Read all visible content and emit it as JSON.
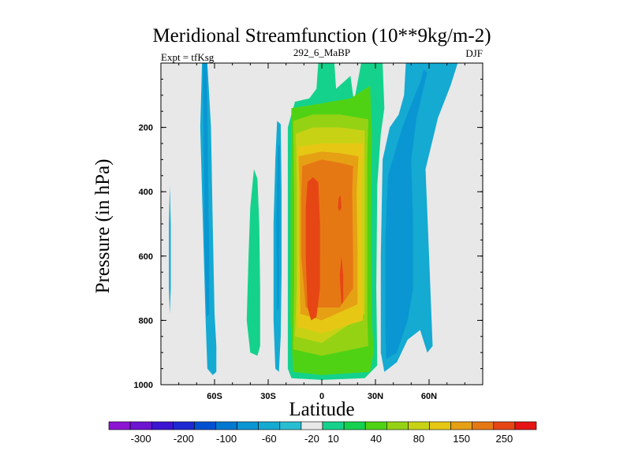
{
  "chart_data": {
    "type": "contour",
    "title": "Meridional Streamfunction (10**9kg/m-2)",
    "subtitle_left": "Expt = tfKsg",
    "subtitle_center": "292_6_MaBP",
    "subtitle_right": "DJF",
    "xlabel": "Latitude",
    "ylabel": "Pressure (in hPa)",
    "xlim": [
      -90,
      90
    ],
    "ylim": [
      0,
      1000
    ],
    "x_ticks": [
      {
        "value": -60,
        "label": "60S"
      },
      {
        "value": -30,
        "label": "30S"
      },
      {
        "value": 0,
        "label": "0"
      },
      {
        "value": 30,
        "label": "30N"
      },
      {
        "value": 60,
        "label": "60N"
      }
    ],
    "y_ticks": [
      {
        "value": 200,
        "label": "200"
      },
      {
        "value": 400,
        "label": "400"
      },
      {
        "value": 600,
        "label": "600"
      },
      {
        "value": 800,
        "label": "800"
      },
      {
        "value": 1000,
        "label": "1000"
      }
    ],
    "colorbar": {
      "colors": [
        "#8c14d2",
        "#6e14d2",
        "#3c14d2",
        "#1e28d2",
        "#0050d2",
        "#0078d2",
        "#0a96d2",
        "#14aad2",
        "#28bed2",
        "#e8e8e8",
        "#14d28c",
        "#14d250",
        "#50d214",
        "#96d214",
        "#c8d214",
        "#e6c814",
        "#e6a014",
        "#e67814",
        "#e64614",
        "#e61414"
      ],
      "labels": [
        "-300",
        "-200",
        "-100",
        "-60",
        "-20",
        "10",
        "40",
        "80",
        "150",
        "250"
      ],
      "label_slots": [
        1,
        3,
        5,
        7,
        9,
        10,
        12,
        14,
        16,
        18
      ]
    },
    "contours": [
      {
        "name": "sh-polar-negative",
        "fill": "#14aad2",
        "points": [
          [
            -85,
            380
          ],
          [
            -84.5,
            500
          ],
          [
            -84.5,
            700
          ],
          [
            -85,
            780
          ],
          [
            -85.5,
            700
          ],
          [
            -85.5,
            500
          ]
        ]
      },
      {
        "name": "sh-high-lat-negative",
        "fill": "#14aad2",
        "points": [
          [
            -67,
            0
          ],
          [
            -64,
            0
          ],
          [
            -62,
            200
          ],
          [
            -61,
            500
          ],
          [
            -60,
            780
          ],
          [
            -59,
            880
          ],
          [
            -59,
            960
          ],
          [
            -61,
            970
          ],
          [
            -64,
            950
          ],
          [
            -65,
            800
          ],
          [
            -66,
            600
          ],
          [
            -67,
            400
          ],
          [
            -68,
            200
          ]
        ]
      },
      {
        "name": "sh-high-lat-core",
        "fill": "#0a96d2",
        "points": [
          [
            -66.5,
            0
          ],
          [
            -64.5,
            0
          ],
          [
            -64,
            150
          ],
          [
            -63.5,
            400
          ],
          [
            -63,
            600
          ],
          [
            -63,
            780
          ],
          [
            -64.5,
            790
          ],
          [
            -65.5,
            600
          ],
          [
            -66,
            300
          ]
        ]
      },
      {
        "name": "sh-ferrel-positive",
        "fill": "#14d28c",
        "points": [
          [
            -38,
            330
          ],
          [
            -36,
            360
          ],
          [
            -35,
            500
          ],
          [
            -34.5,
            700
          ],
          [
            -34.5,
            880
          ],
          [
            -36,
            910
          ],
          [
            -40,
            900
          ],
          [
            -42,
            800
          ],
          [
            -41,
            600
          ],
          [
            -40,
            450
          ]
        ]
      },
      {
        "name": "sh-subtropic-negative",
        "fill": "#14aad2",
        "points": [
          [
            -25,
            180
          ],
          [
            -23,
            190
          ],
          [
            -22.5,
            400
          ],
          [
            -22.5,
            650
          ],
          [
            -23,
            850
          ],
          [
            -24,
            960
          ],
          [
            -26,
            950
          ],
          [
            -27,
            800
          ],
          [
            -27,
            500
          ],
          [
            -26,
            300
          ]
        ]
      },
      {
        "name": "sh-subtropic-core",
        "fill": "#0a96d2",
        "points": [
          [
            -24.5,
            250
          ],
          [
            -23.5,
            260
          ],
          [
            -23.5,
            500
          ],
          [
            -24,
            760
          ],
          [
            -25,
            770
          ],
          [
            -25.5,
            500
          ]
        ]
      },
      {
        "name": "ne-polar-positive",
        "fill": "#14d28c",
        "points": [
          [
            -2,
            0
          ],
          [
            7,
            0
          ],
          [
            8,
            80
          ],
          [
            16,
            40
          ],
          [
            18,
            120
          ],
          [
            22,
            0
          ],
          [
            34,
            0
          ],
          [
            35,
            140
          ],
          [
            33,
            220
          ],
          [
            31,
            380
          ],
          [
            30.5,
            700
          ],
          [
            31,
            940
          ],
          [
            24,
            980
          ],
          [
            0,
            985
          ],
          [
            -17,
            980
          ],
          [
            -19,
            950
          ],
          [
            -19,
            500
          ],
          [
            -19,
            200
          ],
          [
            -15,
            120
          ],
          [
            -7,
            110
          ],
          [
            -3,
            80
          ]
        ]
      },
      {
        "name": "hadley-10",
        "fill": "#50d214",
        "points": [
          [
            -17,
            140
          ],
          [
            -5,
            130
          ],
          [
            5,
            120
          ],
          [
            16,
            110
          ],
          [
            27,
            70
          ],
          [
            28,
            220
          ],
          [
            27.5,
            500
          ],
          [
            28,
            800
          ],
          [
            29,
            900
          ],
          [
            27,
            960
          ],
          [
            0,
            970
          ],
          [
            -16,
            960
          ],
          [
            -17.5,
            800
          ],
          [
            -17.5,
            400
          ]
        ]
      },
      {
        "name": "hadley-40",
        "fill": "#96d214",
        "points": [
          [
            -16,
            180
          ],
          [
            -5,
            160
          ],
          [
            10,
            160
          ],
          [
            26,
            175
          ],
          [
            25.5,
            300
          ],
          [
            25.5,
            600
          ],
          [
            25.5,
            800
          ],
          [
            26,
            880
          ],
          [
            0,
            910
          ],
          [
            -16,
            890
          ],
          [
            -15.5,
            700
          ],
          [
            -15.5,
            400
          ]
        ]
      },
      {
        "name": "hadley-80",
        "fill": "#c8d214",
        "points": [
          [
            -14.5,
            220
          ],
          [
            -5,
            200
          ],
          [
            10,
            200
          ],
          [
            24,
            210
          ],
          [
            24,
            300
          ],
          [
            24,
            600
          ],
          [
            24,
            780
          ],
          [
            0,
            870
          ],
          [
            -15,
            850
          ],
          [
            -14,
            700
          ],
          [
            -14,
            400
          ]
        ]
      },
      {
        "name": "hadley-100",
        "fill": "#e6c814",
        "points": [
          [
            -13.5,
            260
          ],
          [
            0,
            250
          ],
          [
            10,
            250
          ],
          [
            23,
            250
          ],
          [
            22.5,
            400
          ],
          [
            22.5,
            600
          ],
          [
            23,
            800
          ],
          [
            0,
            840
          ],
          [
            -13.5,
            820
          ],
          [
            -13,
            600
          ],
          [
            -13,
            400
          ]
        ]
      },
      {
        "name": "hadley-150",
        "fill": "#e6a014",
        "points": [
          [
            -13,
            290
          ],
          [
            0,
            275
          ],
          [
            10,
            280
          ],
          [
            20.5,
            290
          ],
          [
            19.5,
            400
          ],
          [
            20,
            600
          ],
          [
            20,
            750
          ],
          [
            0,
            800
          ],
          [
            -12,
            780
          ],
          [
            -12.5,
            600
          ],
          [
            -12.5,
            400
          ]
        ]
      },
      {
        "name": "hadley-200",
        "fill": "#e67814",
        "points": [
          [
            -11,
            320
          ],
          [
            0,
            300
          ],
          [
            10,
            310
          ],
          [
            17.5,
            320
          ],
          [
            17,
            400
          ],
          [
            17.5,
            600
          ],
          [
            17.5,
            700
          ],
          [
            10,
            760
          ],
          [
            0,
            760
          ],
          [
            -9,
            760
          ],
          [
            -11.5,
            600
          ],
          [
            -11.5,
            420
          ]
        ]
      },
      {
        "name": "hadley-250-west",
        "fill": "#e64614",
        "points": [
          [
            -8,
            370
          ],
          [
            -5,
            355
          ],
          [
            -2,
            370
          ],
          [
            -1,
            500
          ],
          [
            -1,
            700
          ],
          [
            -3,
            790
          ],
          [
            -6,
            800
          ],
          [
            -8,
            760
          ],
          [
            -9,
            600
          ],
          [
            -9,
            450
          ]
        ]
      },
      {
        "name": "hadley-250-east",
        "fill": "#e64614",
        "points": [
          [
            10,
            660
          ],
          [
            11,
            600
          ],
          [
            12,
            660
          ],
          [
            12,
            740
          ],
          [
            11,
            750
          ]
        ]
      },
      {
        "name": "hadley-250-spot",
        "fill": "#e64614",
        "points": [
          [
            9.5,
            420
          ],
          [
            10.5,
            410
          ],
          [
            11,
            450
          ],
          [
            10,
            460
          ],
          [
            9,
            450
          ]
        ]
      },
      {
        "name": "nh-tropical-upper-negative",
        "fill": "#14aad2",
        "points": [
          [
            47,
            0
          ],
          [
            76,
            0
          ],
          [
            72,
            70
          ],
          [
            65,
            170
          ],
          [
            58,
            330
          ],
          [
            60,
            600
          ],
          [
            62,
            880
          ],
          [
            59,
            900
          ],
          [
            55,
            830
          ],
          [
            48,
            860
          ],
          [
            42,
            930
          ],
          [
            35,
            960
          ],
          [
            33,
            900
          ],
          [
            33,
            600
          ],
          [
            34,
            300
          ],
          [
            38,
            200
          ],
          [
            43,
            160
          ],
          [
            46,
            100
          ]
        ]
      },
      {
        "name": "nh-negative-core",
        "fill": "#0a96d2",
        "points": [
          [
            55,
            60
          ],
          [
            57,
            20
          ],
          [
            59,
            30
          ],
          [
            53,
            170
          ],
          [
            50,
            300
          ],
          [
            51,
            500
          ],
          [
            51,
            700
          ],
          [
            48,
            800
          ],
          [
            42,
            900
          ],
          [
            36,
            920
          ],
          [
            35.5,
            800
          ],
          [
            35.5,
            550
          ],
          [
            37,
            350
          ],
          [
            45,
            200
          ],
          [
            50,
            130
          ]
        ]
      }
    ]
  }
}
